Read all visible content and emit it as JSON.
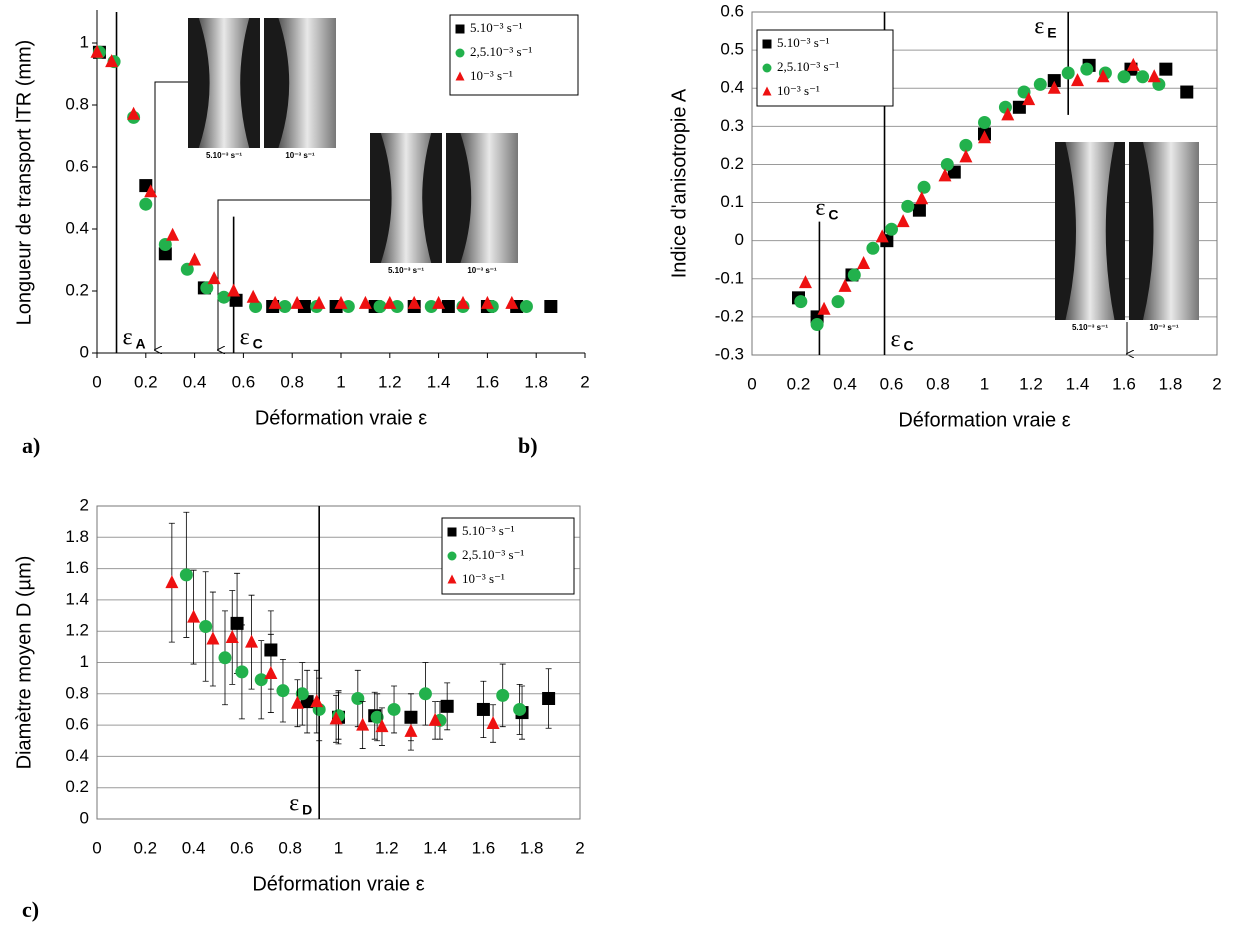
{
  "chart_data": [
    {
      "type": "scatter",
      "panel": "a)",
      "xlabel": "Déformation vraie ε",
      "ylabel": "Longueur de transport lTR (mm)",
      "xlim": [
        0,
        2
      ],
      "xticks": [
        0,
        0.2,
        0.4,
        0.6,
        0.8,
        1,
        1.2,
        1.4,
        1.6,
        1.8,
        2
      ],
      "ylim": [
        0,
        1.1
      ],
      "yticks": [
        0,
        0.2,
        0.4,
        0.6,
        0.8,
        1
      ],
      "grid": false,
      "legend": "top right",
      "series": [
        {
          "name": "5.10⁻³ s⁻¹",
          "color": "#000000",
          "marker": "square",
          "x": [
            0.01,
            0.2,
            0.28,
            0.44,
            0.57,
            0.72,
            0.85,
            0.98,
            1.14,
            1.3,
            1.44,
            1.6,
            1.72,
            1.86
          ],
          "values": [
            0.97,
            0.54,
            0.32,
            0.21,
            0.17,
            0.15,
            0.15,
            0.15,
            0.15,
            0.15,
            0.15,
            0.15,
            0.15,
            0.15
          ]
        },
        {
          "name": "2,5.10⁻³ s⁻¹",
          "color": "#22b14c",
          "marker": "circle",
          "x": [
            0.01,
            0.07,
            0.15,
            0.2,
            0.28,
            0.37,
            0.45,
            0.52,
            0.65,
            0.77,
            0.9,
            1.03,
            1.16,
            1.23,
            1.37,
            1.5,
            1.62,
            1.76
          ],
          "values": [
            0.97,
            0.94,
            0.76,
            0.48,
            0.35,
            0.27,
            0.21,
            0.18,
            0.15,
            0.15,
            0.15,
            0.15,
            0.15,
            0.15,
            0.15,
            0.15,
            0.15,
            0.15
          ]
        },
        {
          "name": "10⁻³ s⁻¹",
          "color": "#ee1111",
          "marker": "triangle",
          "x": [
            0,
            0.06,
            0.15,
            0.22,
            0.31,
            0.4,
            0.48,
            0.56,
            0.64,
            0.73,
            0.82,
            0.91,
            1.0,
            1.1,
            1.2,
            1.3,
            1.4,
            1.5,
            1.6,
            1.7
          ],
          "values": [
            0.97,
            0.94,
            0.77,
            0.52,
            0.38,
            0.3,
            0.24,
            0.2,
            0.18,
            0.16,
            0.16,
            0.16,
            0.16,
            0.16,
            0.16,
            0.16,
            0.16,
            0.16,
            0.16,
            0.16
          ]
        }
      ],
      "annotations": [
        {
          "text": "ε",
          "sub": "A",
          "x": 0.08,
          "ymin": 0,
          "ymax": 1.1
        },
        {
          "text": "ε",
          "sub": "C",
          "x": 0.56,
          "ymin": 0,
          "ymax": 0.44
        }
      ],
      "insets": [
        {
          "captions": [
            "5.10⁻³ s⁻¹",
            "10⁻³ s⁻¹"
          ]
        },
        {
          "captions": [
            "5.10⁻³ s⁻¹",
            "10⁻³ s⁻¹"
          ]
        }
      ]
    },
    {
      "type": "scatter",
      "panel": "b)",
      "xlabel": "Déformation vraie ε",
      "ylabel": "Indice d'anisotropie A",
      "xlim": [
        0,
        2
      ],
      "xticks": [
        0,
        0.2,
        0.4,
        0.6,
        0.8,
        1,
        1.2,
        1.4,
        1.6,
        1.8,
        2
      ],
      "ylim": [
        -0.3,
        0.6
      ],
      "yticks": [
        -0.3,
        -0.2,
        -0.1,
        0,
        0.1,
        0.2,
        0.3,
        0.4,
        0.5,
        0.6
      ],
      "grid": true,
      "legend": "top left",
      "series": [
        {
          "name": "5.10⁻³ s⁻¹",
          "color": "#000000",
          "marker": "square",
          "x": [
            0.2,
            0.28,
            0.43,
            0.58,
            0.72,
            0.87,
            1.0,
            1.15,
            1.3,
            1.45,
            1.63,
            1.78,
            1.87
          ],
          "values": [
            -0.15,
            -0.2,
            -0.09,
            0.0,
            0.08,
            0.18,
            0.28,
            0.35,
            0.42,
            0.46,
            0.45,
            0.45,
            0.39
          ]
        },
        {
          "name": "2,5.10⁻³ s⁻¹",
          "color": "#22b14c",
          "marker": "circle",
          "x": [
            0.21,
            0.28,
            0.37,
            0.44,
            0.52,
            0.6,
            0.67,
            0.74,
            0.84,
            0.92,
            1.0,
            1.09,
            1.17,
            1.24,
            1.36,
            1.44,
            1.52,
            1.6,
            1.68,
            1.75
          ],
          "values": [
            -0.16,
            -0.22,
            -0.16,
            -0.09,
            -0.02,
            0.03,
            0.09,
            0.14,
            0.2,
            0.25,
            0.31,
            0.35,
            0.39,
            0.41,
            0.44,
            0.45,
            0.44,
            0.43,
            0.43,
            0.41
          ]
        },
        {
          "name": "10⁻³ s⁻¹",
          "color": "#ee1111",
          "marker": "triangle",
          "x": [
            0.23,
            0.31,
            0.4,
            0.48,
            0.56,
            0.65,
            0.73,
            0.83,
            0.92,
            1.0,
            1.1,
            1.19,
            1.3,
            1.4,
            1.51,
            1.64,
            1.73
          ],
          "values": [
            -0.11,
            -0.18,
            -0.12,
            -0.06,
            0.01,
            0.05,
            0.11,
            0.17,
            0.22,
            0.27,
            0.33,
            0.37,
            0.4,
            0.42,
            0.43,
            0.46,
            0.43
          ]
        }
      ],
      "annotations": [
        {
          "text": "ε",
          "sub": "C",
          "x": 0.29,
          "ymin": -0.3,
          "ymax": 0.05
        },
        {
          "text": "ε",
          "sub": "C",
          "x": 0.57,
          "ymin": -0.3,
          "ymax": 0.6
        },
        {
          "text": "ε",
          "sub": "E",
          "x": 1.36,
          "ymin": 0.33,
          "ymax": 0.6
        }
      ],
      "insets": [
        {
          "captions": [
            "5.10⁻³ s⁻¹",
            "10⁻³ s⁻¹"
          ]
        }
      ]
    },
    {
      "type": "scatter",
      "panel": "c)",
      "xlabel": "Déformation vraie ε",
      "ylabel": "Diamètre moyen D (µm)",
      "xlim": [
        0,
        2
      ],
      "xticks": [
        0,
        0.2,
        0.4,
        0.6,
        0.8,
        1,
        1.2,
        1.4,
        1.6,
        1.8,
        2
      ],
      "ylim": [
        0,
        2
      ],
      "yticks": [
        0,
        0.2,
        0.4,
        0.6,
        0.8,
        1,
        1.2,
        1.4,
        1.6,
        1.8,
        2
      ],
      "grid": true,
      "legend": "top right",
      "series": [
        {
          "name": "5.10⁻³ s⁻¹",
          "color": "#000000",
          "marker": "square",
          "x": [
            0.58,
            0.72,
            0.87,
            1.0,
            1.15,
            1.3,
            1.45,
            1.6,
            1.76,
            1.87
          ],
          "values": [
            1.25,
            1.08,
            0.75,
            0.65,
            0.66,
            0.65,
            0.72,
            0.7,
            0.68,
            0.77
          ],
          "errors": [
            0.32,
            0.25,
            0.2,
            0.17,
            0.15,
            0.15,
            0.15,
            0.18,
            0.17,
            0.19
          ]
        },
        {
          "name": "2,5.10⁻³ s⁻¹",
          "color": "#22b14c",
          "marker": "circle",
          "x": [
            0.37,
            0.45,
            0.53,
            0.6,
            0.68,
            0.77,
            0.85,
            0.92,
            1.0,
            1.08,
            1.16,
            1.23,
            1.36,
            1.42,
            1.68,
            1.75
          ],
          "values": [
            1.56,
            1.23,
            1.03,
            0.94,
            0.89,
            0.82,
            0.8,
            0.7,
            0.66,
            0.77,
            0.65,
            0.7,
            0.8,
            0.63,
            0.79,
            0.7
          ],
          "errors": [
            0.4,
            0.35,
            0.3,
            0.3,
            0.25,
            0.2,
            0.2,
            0.2,
            0.15,
            0.18,
            0.15,
            0.15,
            0.2,
            0.12,
            0.2,
            0.16
          ]
        },
        {
          "name": "10⁻³ s⁻¹",
          "color": "#ee1111",
          "marker": "triangle",
          "x": [
            0.31,
            0.4,
            0.48,
            0.56,
            0.64,
            0.72,
            0.83,
            0.91,
            0.99,
            1.1,
            1.18,
            1.3,
            1.4,
            1.64
          ],
          "values": [
            1.51,
            1.29,
            1.15,
            1.16,
            1.13,
            0.93,
            0.74,
            0.75,
            0.64,
            0.6,
            0.59,
            0.56,
            0.63,
            0.61
          ],
          "errors": [
            0.38,
            0.3,
            0.3,
            0.3,
            0.3,
            0.25,
            0.15,
            0.2,
            0.15,
            0.15,
            0.12,
            0.12,
            0.12,
            0.12
          ]
        }
      ],
      "annotations": [
        {
          "text": "ε",
          "sub": "D",
          "x": 0.92,
          "ymin": 0,
          "ymax": 2
        }
      ]
    }
  ]
}
